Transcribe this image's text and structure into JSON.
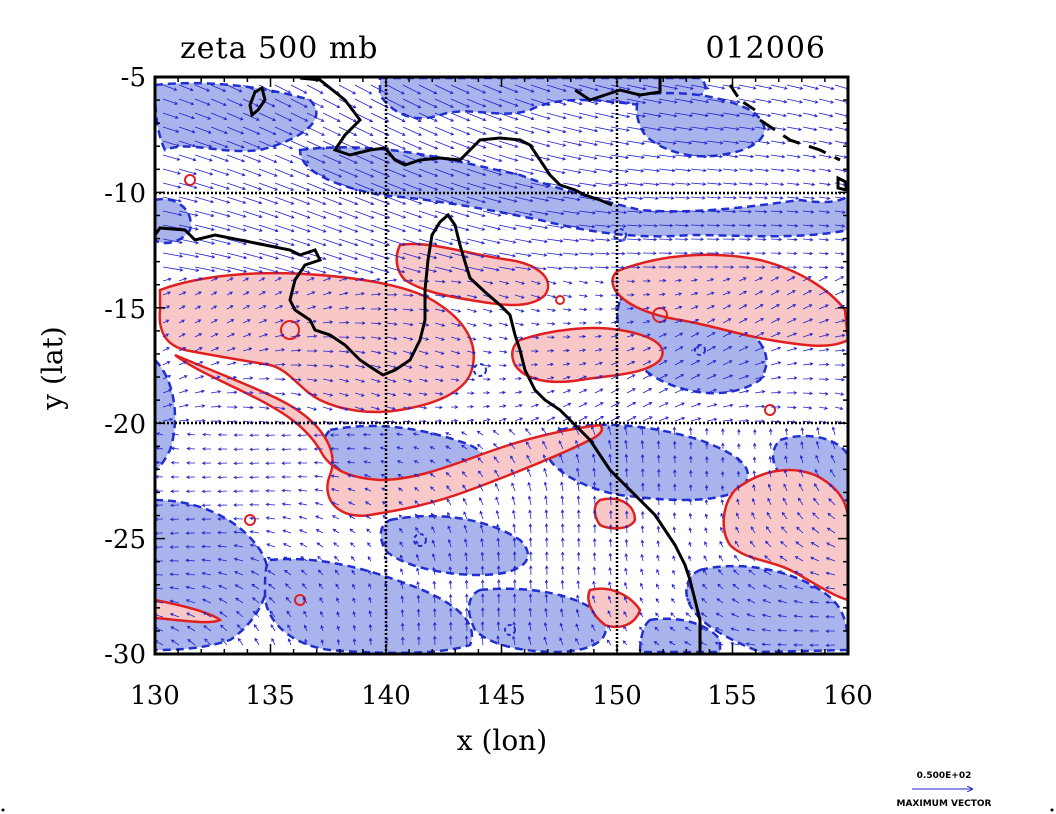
{
  "plot": {
    "title_left": "zeta 500 mb",
    "title_right": "012006",
    "xlabel": "x (lon)",
    "ylabel": "y (lat)",
    "xlim": [
      130,
      160
    ],
    "ylim": [
      -30,
      -5
    ],
    "x_ticks": [
      "130",
      "135",
      "140",
      "145",
      "150",
      "155",
      "160"
    ],
    "y_ticks": [
      "-5",
      "-10",
      "-15",
      "-20",
      "-25",
      "-30"
    ],
    "grid_lines_lon": [
      140,
      150
    ],
    "grid_lines_lat": [
      -10,
      -20
    ]
  },
  "legend": {
    "value": "0.500E+02",
    "label": "MAXIMUM VECTOR"
  },
  "colors": {
    "positive_fill": "#f8c8c8",
    "positive_line": "#e02020",
    "negative_fill": "#aab4ec",
    "negative_line": "#2030d0",
    "vector": "#2020d0",
    "coastline": "#000000"
  }
}
